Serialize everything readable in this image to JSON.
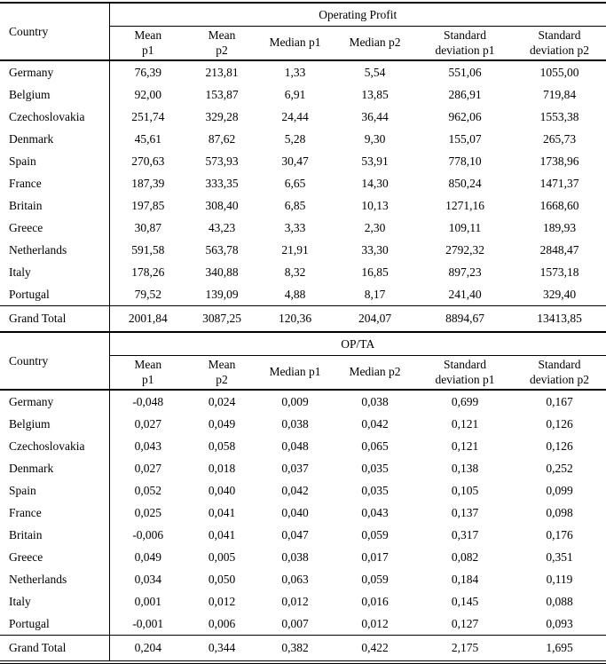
{
  "colors": {
    "background": "#ffffff",
    "text": "#000000",
    "rules": "#000000"
  },
  "chart_data": [
    {
      "type": "table",
      "title": "Operating Profit",
      "corner_header": "Country",
      "column_headers": [
        "Mean\np1",
        "Mean\np2",
        "Median p1",
        "Median p2",
        "Standard\ndeviation p1",
        "Standard\ndeviation p2"
      ],
      "rows": [
        {
          "country": "Germany",
          "values": [
            "76,39",
            "213,81",
            "1,33",
            "5,54",
            "551,06",
            "1055,00"
          ]
        },
        {
          "country": "Belgium",
          "values": [
            "92,00",
            "153,87",
            "6,91",
            "13,85",
            "286,91",
            "719,84"
          ]
        },
        {
          "country": "Czechoslovakia",
          "values": [
            "251,74",
            "329,28",
            "24,44",
            "36,44",
            "962,06",
            "1553,38"
          ]
        },
        {
          "country": "Denmark",
          "values": [
            "45,61",
            "87,62",
            "5,28",
            "9,30",
            "155,07",
            "265,73"
          ]
        },
        {
          "country": "Spain",
          "values": [
            "270,63",
            "573,93",
            "30,47",
            "53,91",
            "778,10",
            "1738,96"
          ]
        },
        {
          "country": "France",
          "values": [
            "187,39",
            "333,35",
            "6,65",
            "14,30",
            "850,24",
            "1471,37"
          ]
        },
        {
          "country": "Britain",
          "values": [
            "197,85",
            "308,40",
            "6,85",
            "10,13",
            "1271,16",
            "1668,60"
          ]
        },
        {
          "country": "Greece",
          "values": [
            "30,87",
            "43,23",
            "3,33",
            "2,30",
            "109,11",
            "189,93"
          ]
        },
        {
          "country": "Netherlands",
          "values": [
            "591,58",
            "563,78",
            "21,91",
            "33,30",
            "2792,32",
            "2848,47"
          ]
        },
        {
          "country": "Italy",
          "values": [
            "178,26",
            "340,88",
            "8,32",
            "16,85",
            "897,23",
            "1573,18"
          ]
        },
        {
          "country": "Portugal",
          "values": [
            "79,52",
            "139,09",
            "4,88",
            "8,17",
            "241,40",
            "329,40"
          ]
        }
      ],
      "grand_total": {
        "label": "Grand Total",
        "values": [
          "2001,84",
          "3087,25",
          "120,36",
          "204,07",
          "8894,67",
          "13413,85"
        ]
      }
    },
    {
      "type": "table",
      "title": "OP/TA",
      "corner_header": "Country",
      "column_headers": [
        "Mean\np1",
        "Mean\np2",
        "Median p1",
        "Median p2",
        "Standard\ndeviation p1",
        "Standard\ndeviation p2"
      ],
      "rows": [
        {
          "country": "Germany",
          "values": [
            "-0,048",
            "0,024",
            "0,009",
            "0,038",
            "0,699",
            "0,167"
          ]
        },
        {
          "country": "Belgium",
          "values": [
            "0,027",
            "0,049",
            "0,038",
            "0,042",
            "0,121",
            "0,126"
          ]
        },
        {
          "country": "Czechoslovakia",
          "values": [
            "0,043",
            "0,058",
            "0,048",
            "0,065",
            "0,121",
            "0,126"
          ]
        },
        {
          "country": "Denmark",
          "values": [
            "0,027",
            "0,018",
            "0,037",
            "0,035",
            "0,138",
            "0,252"
          ]
        },
        {
          "country": "Spain",
          "values": [
            "0,052",
            "0,040",
            "0,042",
            "0,035",
            "0,105",
            "0,099"
          ]
        },
        {
          "country": "France",
          "values": [
            "0,025",
            "0,041",
            "0,040",
            "0,043",
            "0,137",
            "0,098"
          ]
        },
        {
          "country": "Britain",
          "values": [
            "-0,006",
            "0,041",
            "0,047",
            "0,059",
            "0,317",
            "0,176"
          ]
        },
        {
          "country": "Greece",
          "values": [
            "0,049",
            "0,005",
            "0,038",
            "0,017",
            "0,082",
            "0,351"
          ]
        },
        {
          "country": "Netherlands",
          "values": [
            "0,034",
            "0,050",
            "0,063",
            "0,059",
            "0,184",
            "0,119"
          ]
        },
        {
          "country": "Italy",
          "values": [
            "0,001",
            "0,012",
            "0,012",
            "0,016",
            "0,145",
            "0,088"
          ]
        },
        {
          "country": "Portugal",
          "values": [
            "-0,001",
            "0,006",
            "0,007",
            "0,012",
            "0,127",
            "0,093"
          ]
        }
      ],
      "grand_total": {
        "label": "Grand Total",
        "values": [
          "0,204",
          "0,344",
          "0,382",
          "0,422",
          "2,175",
          "1,695"
        ]
      }
    }
  ]
}
